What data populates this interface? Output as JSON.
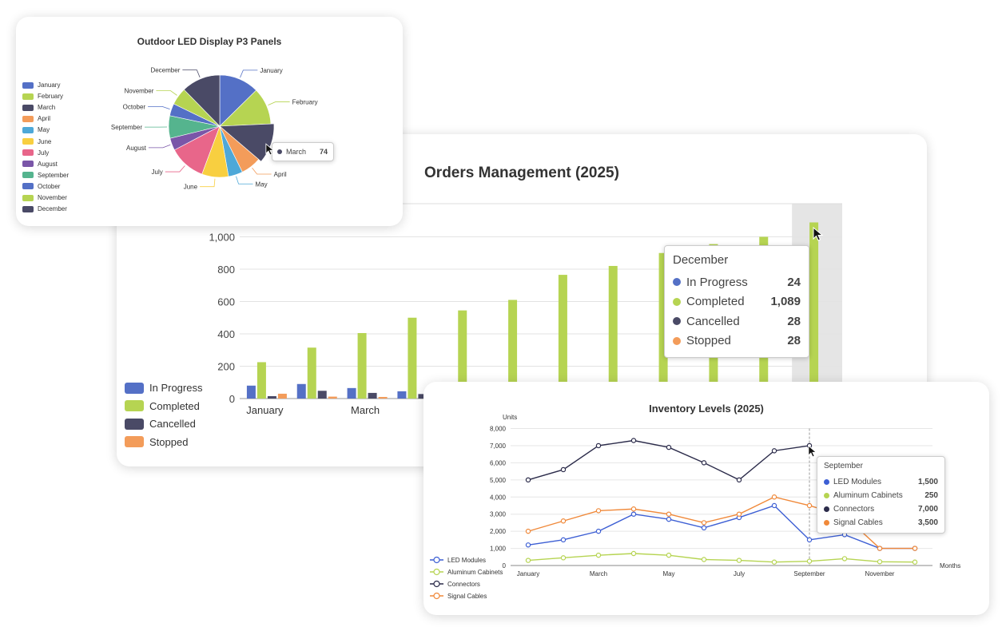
{
  "orders": {
    "title": "Orders Management (2025)",
    "chart_data": {
      "type": "bar",
      "title": "Orders Management (2025)",
      "categories": [
        "January",
        "February",
        "March",
        "April",
        "May",
        "June",
        "July",
        "August",
        "September",
        "October",
        "November",
        "December"
      ],
      "series": [
        {
          "name": "In Progress",
          "color": "#5470c6",
          "values": [
            80,
            90,
            65,
            45,
            40,
            35,
            30,
            30,
            28,
            26,
            25,
            24
          ]
        },
        {
          "name": "Completed",
          "color": "#b6d452",
          "values": [
            225,
            315,
            405,
            500,
            545,
            610,
            765,
            820,
            900,
            955,
            1000,
            1089
          ]
        },
        {
          "name": "Cancelled",
          "color": "#4a4a66",
          "values": [
            15,
            48,
            35,
            28,
            25,
            25,
            26,
            27,
            27,
            28,
            28,
            28
          ]
        },
        {
          "name": "Stopped",
          "color": "#f39c5a",
          "values": [
            30,
            12,
            10,
            20,
            22,
            24,
            25,
            26,
            27,
            28,
            28,
            28
          ]
        }
      ],
      "x_tick_labels": [
        "January",
        "",
        "March",
        "",
        "May",
        "",
        "July",
        "",
        "September",
        "",
        "November",
        ""
      ],
      "y_ticks": [
        "0",
        "200",
        "400",
        "600",
        "800",
        "1,000"
      ],
      "ylim": [
        0,
        1100
      ],
      "highlighted_category": "December",
      "legend_position": "left"
    },
    "tooltip": {
      "title": "December",
      "rows": [
        {
          "label": "In Progress",
          "value": "24",
          "color": "#5470c6"
        },
        {
          "label": "Completed",
          "value": "1,089",
          "color": "#b6d452"
        },
        {
          "label": "Cancelled",
          "value": "28",
          "color": "#4a4a66"
        },
        {
          "label": "Stopped",
          "value": "28",
          "color": "#f39c5a"
        }
      ]
    }
  },
  "pie": {
    "title": "Outdoor LED Display P3 Panels",
    "chart_data": {
      "type": "pie",
      "title": "Outdoor LED Display P3 Panels",
      "labels": [
        "January",
        "February",
        "March",
        "April",
        "May",
        "June",
        "July",
        "August",
        "September",
        "October",
        "November",
        "December"
      ],
      "values": [
        78,
        72,
        74,
        40,
        28,
        52,
        72,
        24,
        44,
        24,
        34,
        76
      ],
      "colors": [
        "#5470c6",
        "#b6d452",
        "#4a4a66",
        "#f39c5a",
        "#4ea8d8",
        "#f8cf40",
        "#e8668a",
        "#7a56a8",
        "#55b48e",
        "#5470c6",
        "#b6d452",
        "#4a4a66"
      ],
      "highlighted_slice": "March",
      "legend_position": "left"
    },
    "tooltip": {
      "label": "March",
      "value": "74",
      "color": "#4a4a66"
    }
  },
  "inventory": {
    "title": "Inventory Levels (2025)",
    "chart_data": {
      "type": "line",
      "title": "Inventory Levels (2025)",
      "xlabel": "Months",
      "ylabel": "Units",
      "categories": [
        "January",
        "February",
        "March",
        "April",
        "May",
        "June",
        "July",
        "August",
        "September",
        "October",
        "November",
        "December"
      ],
      "x_tick_labels": [
        "January",
        "",
        "March",
        "",
        "May",
        "",
        "July",
        "",
        "September",
        "",
        "November",
        ""
      ],
      "y_ticks": [
        "0",
        "1,000",
        "2,000",
        "3,000",
        "4,000",
        "5,000",
        "6,000",
        "7,000",
        "8,000"
      ],
      "ylim": [
        0,
        8000
      ],
      "series": [
        {
          "name": "LED Modules",
          "color": "#3d5fd4",
          "values": [
            1200,
            1500,
            2000,
            3000,
            2700,
            2200,
            2800,
            3500,
            1500,
            1800,
            1000,
            1000
          ]
        },
        {
          "name": "Aluminum Cabinets",
          "color": "#b6d452",
          "values": [
            300,
            450,
            600,
            700,
            600,
            350,
            300,
            200,
            250,
            400,
            220,
            200
          ]
        },
        {
          "name": "Connectors",
          "color": "#2b2b4a",
          "values": [
            5000,
            5600,
            7000,
            7300,
            6900,
            6000,
            5000,
            6700,
            7000,
            null,
            null,
            null
          ]
        },
        {
          "name": "Signal Cables",
          "color": "#f0893a",
          "values": [
            2000,
            2600,
            3200,
            3300,
            3000,
            2500,
            3000,
            4000,
            3500,
            2900,
            1000,
            1000
          ]
        }
      ],
      "highlighted_category": "September",
      "legend_position": "bottom-left"
    },
    "tooltip": {
      "title": "September",
      "rows": [
        {
          "label": "LED Modules",
          "value": "1,500",
          "color": "#3d5fd4"
        },
        {
          "label": "Aluminum Cabinets",
          "value": "250",
          "color": "#b6d452"
        },
        {
          "label": "Connectors",
          "value": "7,000",
          "color": "#2b2b4a"
        },
        {
          "label": "Signal Cables",
          "value": "3,500",
          "color": "#f0893a"
        }
      ]
    }
  }
}
